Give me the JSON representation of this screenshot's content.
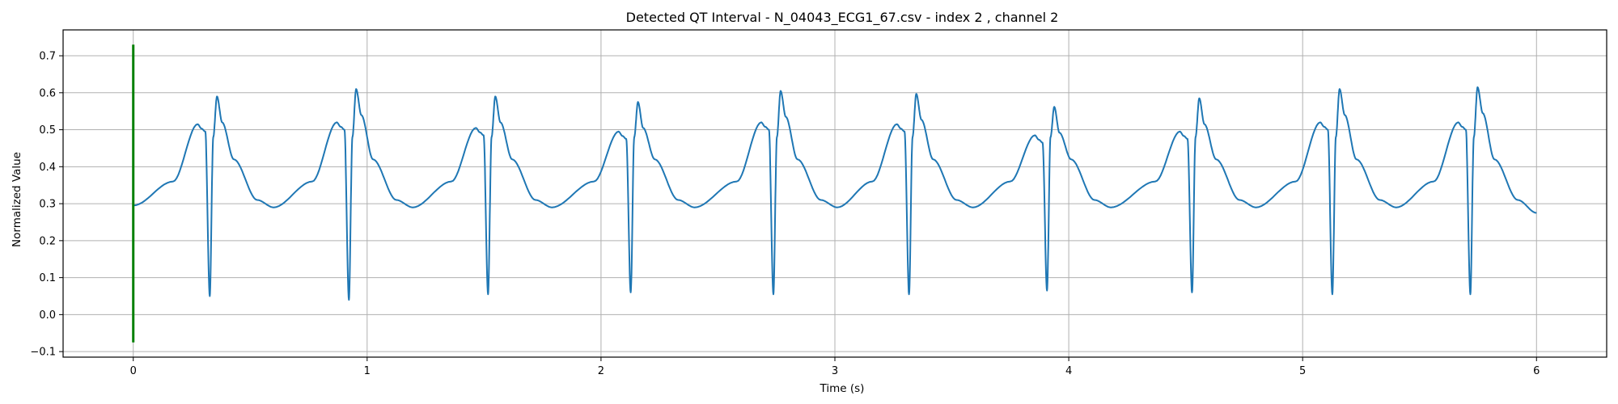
{
  "chart_data": {
    "type": "line",
    "title": "Detected QT Interval - N_04043_ECG1_67.csv - index 2 , channel 2",
    "xlabel": "Time (s)",
    "ylabel": "Normalized Value",
    "xlim": [
      -0.3,
      6.3
    ],
    "ylim": [
      -0.115,
      0.77
    ],
    "x_ticks": [
      0,
      1,
      2,
      3,
      4,
      5,
      6
    ],
    "y_ticks": [
      -0.1,
      0.0,
      0.1,
      0.2,
      0.3,
      0.4,
      0.5,
      0.6,
      0.7
    ],
    "x_tick_labels": [
      "0",
      "1",
      "2",
      "3",
      "4",
      "5",
      "6"
    ],
    "y_tick_labels": [
      "−0.1",
      "0.0",
      "0.1",
      "0.2",
      "0.3",
      "0.4",
      "0.5",
      "0.6",
      "0.7"
    ],
    "grid": true,
    "colors": {
      "signal": "#1f77b4",
      "marker": "#008000"
    },
    "markers": [
      {
        "x": 0,
        "y_min": -0.075,
        "y_max": 0.73
      }
    ],
    "beats": [
      {
        "q": 0.33,
        "q_min": 0.05,
        "r_peak": 0.59,
        "p_peak": 0.515
      },
      {
        "q": 0.925,
        "q_min": 0.04,
        "r_peak": 0.61,
        "p_peak": 0.52
      },
      {
        "q": 1.52,
        "q_min": 0.055,
        "r_peak": 0.59,
        "p_peak": 0.505
      },
      {
        "q": 2.13,
        "q_min": 0.06,
        "r_peak": 0.575,
        "p_peak": 0.495
      },
      {
        "q": 2.74,
        "q_min": 0.055,
        "r_peak": 0.605,
        "p_peak": 0.52
      },
      {
        "q": 3.32,
        "q_min": 0.055,
        "r_peak": 0.597,
        "p_peak": 0.515
      },
      {
        "q": 3.91,
        "q_min": 0.065,
        "r_peak": 0.562,
        "p_peak": 0.485
      },
      {
        "q": 4.53,
        "q_min": 0.06,
        "r_peak": 0.585,
        "p_peak": 0.495
      },
      {
        "q": 5.13,
        "q_min": 0.055,
        "r_peak": 0.61,
        "p_peak": 0.52
      },
      {
        "q": 5.72,
        "q_min": 0.055,
        "r_peak": 0.615,
        "p_peak": 0.52
      }
    ],
    "baseline": 0.29,
    "x_start": 0,
    "x_end": 6.0,
    "y_start": 0.295,
    "y_end": 0.275
  }
}
